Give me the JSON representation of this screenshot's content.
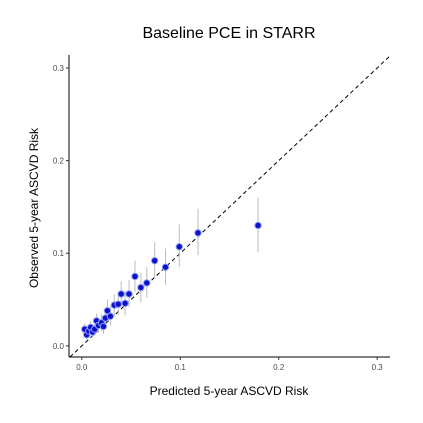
{
  "chart_data": {
    "type": "scatter",
    "title": "Baseline PCE in STARR",
    "xlabel": "Predicted 5-year ASCVD Risk",
    "ylabel": "Observed 5-year ASCVD Risk",
    "xlim": [
      -0.013,
      0.313
    ],
    "ylim": [
      -0.012,
      0.314
    ],
    "x_ticks": [
      0.0,
      0.1,
      0.2,
      0.3
    ],
    "x_tick_labels": [
      "0.0",
      "0.1",
      "0.2",
      "0.3"
    ],
    "y_ticks": [
      0.0,
      0.1,
      0.2,
      0.3
    ],
    "y_tick_labels": [
      "0.0",
      "0.1",
      "0.2",
      "0.3"
    ],
    "grid": false,
    "reference_line": "y = x (dashed)",
    "colors": {
      "point_fill": "#1010c8",
      "point_edge": "#8ea0ff",
      "error_bar": "#bdbdbd"
    },
    "points": [
      {
        "x": 0.003,
        "y": 0.018,
        "low": 0.012,
        "high": 0.024
      },
      {
        "x": 0.005,
        "y": 0.012,
        "low": 0.007,
        "high": 0.017
      },
      {
        "x": 0.007,
        "y": 0.016,
        "low": 0.01,
        "high": 0.022
      },
      {
        "x": 0.009,
        "y": 0.02,
        "low": 0.013,
        "high": 0.027
      },
      {
        "x": 0.011,
        "y": 0.015,
        "low": 0.009,
        "high": 0.021
      },
      {
        "x": 0.013,
        "y": 0.018,
        "low": 0.011,
        "high": 0.025
      },
      {
        "x": 0.015,
        "y": 0.027,
        "low": 0.019,
        "high": 0.035
      },
      {
        "x": 0.017,
        "y": 0.022,
        "low": 0.014,
        "high": 0.03
      },
      {
        "x": 0.02,
        "y": 0.025,
        "low": 0.016,
        "high": 0.034
      },
      {
        "x": 0.022,
        "y": 0.021,
        "low": 0.013,
        "high": 0.03
      },
      {
        "x": 0.024,
        "y": 0.03,
        "low": 0.02,
        "high": 0.04
      },
      {
        "x": 0.026,
        "y": 0.038,
        "low": 0.027,
        "high": 0.05
      },
      {
        "x": 0.029,
        "y": 0.032,
        "low": 0.022,
        "high": 0.043
      },
      {
        "x": 0.033,
        "y": 0.044,
        "low": 0.032,
        "high": 0.056
      },
      {
        "x": 0.037,
        "y": 0.045,
        "low": 0.033,
        "high": 0.058
      },
      {
        "x": 0.04,
        "y": 0.056,
        "low": 0.042,
        "high": 0.07
      },
      {
        "x": 0.044,
        "y": 0.046,
        "low": 0.033,
        "high": 0.06
      },
      {
        "x": 0.048,
        "y": 0.056,
        "low": 0.042,
        "high": 0.071
      },
      {
        "x": 0.054,
        "y": 0.075,
        "low": 0.058,
        "high": 0.092
      },
      {
        "x": 0.06,
        "y": 0.063,
        "low": 0.047,
        "high": 0.079
      },
      {
        "x": 0.066,
        "y": 0.068,
        "low": 0.052,
        "high": 0.085
      },
      {
        "x": 0.074,
        "y": 0.092,
        "low": 0.073,
        "high": 0.112
      },
      {
        "x": 0.085,
        "y": 0.085,
        "low": 0.066,
        "high": 0.105
      },
      {
        "x": 0.099,
        "y": 0.107,
        "low": 0.085,
        "high": 0.131
      },
      {
        "x": 0.118,
        "y": 0.122,
        "low": 0.098,
        "high": 0.148
      },
      {
        "x": 0.179,
        "y": 0.13,
        "low": 0.101,
        "high": 0.16
      }
    ]
  }
}
